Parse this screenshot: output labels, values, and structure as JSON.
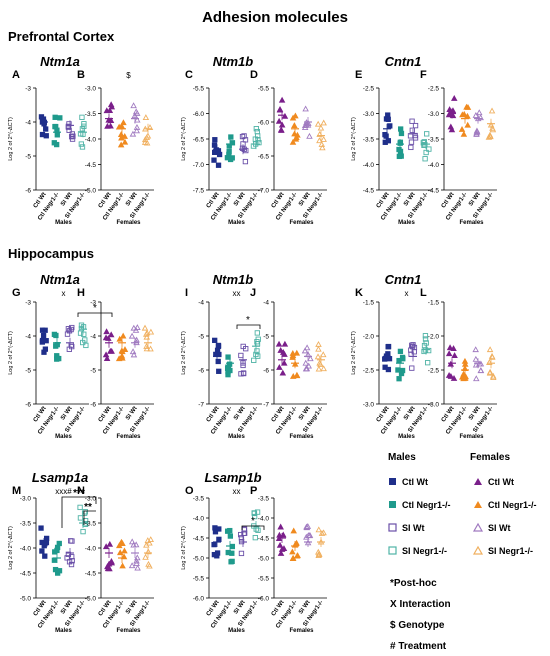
{
  "title": "Adhesion molecules",
  "sections": [
    {
      "label": "Prefrontal Cortex"
    },
    {
      "label": "Hippocampus"
    }
  ],
  "colors": {
    "ctl_wt": "#1f2f8a",
    "ctl_negr1": "#1f9a8c",
    "si_wt": "#6a4fa8",
    "si_negr1": "#4fb3a6",
    "f_ctl_wt": "#7a1f8a",
    "f_ctl_negr1": "#f08a1f",
    "f_si_wt": "#a07ac0",
    "f_si_negr1": "#f0b060"
  },
  "ylabel": "Log 2 of 2^(-ΔCT)",
  "xticks_male": [
    "Ctl Wt",
    "Ctl Negr1-/-",
    "SI Wt",
    "SI Negr1-/-"
  ],
  "xticks_female": [
    "Ctl Wt",
    "Ctl Negr1-/-",
    "SI Wt",
    "SI Negr1-/-"
  ],
  "group_male": "Males",
  "group_female": "Females",
  "panels": [
    {
      "letter": "A",
      "gene": "Ntm1a",
      "sex": "M",
      "ylim": [
        -6,
        -3
      ],
      "yticks": [
        "-3",
        "-4",
        "-5",
        "-6"
      ],
      "means": [
        -4.0,
        -4.3,
        -4.1,
        -4.3
      ],
      "mark": ""
    },
    {
      "letter": "B",
      "gene": "",
      "sex": "F",
      "ylim": [
        -5,
        -3
      ],
      "yticks": [
        "-3.0",
        "-3.5",
        "-4.0",
        "-4.5",
        "-5.0"
      ],
      "means": [
        -3.6,
        -3.8,
        -3.6,
        -3.8
      ],
      "mark": "$"
    },
    {
      "letter": "C",
      "gene": "Ntm1b",
      "sex": "M",
      "ylim": [
        -7.5,
        -5.5
      ],
      "yticks": [
        "-5.5",
        "-6.0",
        "-6.5",
        "-7.0",
        "-7.5"
      ],
      "means": [
        -6.7,
        -6.6,
        -6.7,
        -6.6
      ],
      "mark": ""
    },
    {
      "letter": "D",
      "gene": "",
      "sex": "F",
      "ylim": [
        -7,
        -5.5
      ],
      "yticks": [
        "-5.5",
        "-6.0",
        "-6.5",
        "-7.0"
      ],
      "means": [
        -5.9,
        -6.1,
        -6.0,
        -6.2
      ],
      "mark": ""
    },
    {
      "letter": "E",
      "gene": "Cntn1",
      "sex": "M",
      "ylim": [
        -4.5,
        -2.5
      ],
      "yticks": [
        "-2.5",
        "-3.0",
        "-3.5",
        "-4.0",
        "-4.5"
      ],
      "means": [
        -3.3,
        -3.6,
        -3.4,
        -3.6
      ],
      "mark": ""
    },
    {
      "letter": "F",
      "gene": "",
      "sex": "F",
      "ylim": [
        -4.5,
        -2.5
      ],
      "yticks": [
        "-2.5",
        "-3.0",
        "-3.5",
        "-4.0",
        "-4.5"
      ],
      "means": [
        -3.0,
        -3.1,
        -3.1,
        -3.2
      ],
      "mark": ""
    },
    {
      "letter": "G",
      "gene": "Ntm1a",
      "sex": "M",
      "ylim": [
        -6,
        -3
      ],
      "yticks": [
        "-3",
        "-4",
        "-5",
        "-6"
      ],
      "means": [
        -4.1,
        -4.2,
        -4.2,
        -3.8
      ],
      "mark": "x"
    },
    {
      "letter": "H",
      "gene": "",
      "sex": "F",
      "ylim": [
        -6,
        -3
      ],
      "yticks": [
        "-3",
        "-4",
        "-5",
        "-6"
      ],
      "means": [
        -4.2,
        -4.2,
        -4.2,
        -4.2
      ],
      "mark": ""
    },
    {
      "letter": "I",
      "gene": "Ntm1b",
      "sex": "M",
      "ylim": [
        -7,
        -4
      ],
      "yticks": [
        "-4",
        "-5",
        "-6",
        "-7"
      ],
      "means": [
        -5.6,
        -5.8,
        -5.7,
        -5.3
      ],
      "mark": "xx"
    },
    {
      "letter": "J",
      "gene": "",
      "sex": "F",
      "ylim": [
        -7,
        -4
      ],
      "yticks": [
        "-4",
        "-5",
        "-6",
        "-7"
      ],
      "means": [
        -5.7,
        -5.8,
        -5.6,
        -5.7
      ],
      "mark": ""
    },
    {
      "letter": "K",
      "gene": "Cntn1",
      "sex": "M",
      "ylim": [
        -3,
        -1.5
      ],
      "yticks": [
        "-1.5",
        "-2.0",
        "-2.5",
        "-3.0"
      ],
      "means": [
        -2.3,
        -2.4,
        -2.3,
        -2.2
      ],
      "mark": "x"
    },
    {
      "letter": "L",
      "gene": "",
      "sex": "F",
      "ylim": [
        -3,
        -1.5
      ],
      "yticks": [
        "-1.5",
        "-2.0",
        "-2.5",
        "-3.0"
      ],
      "means": [
        -2.4,
        -2.5,
        -2.4,
        -2.4
      ],
      "mark": ""
    },
    {
      "letter": "M",
      "gene": "Lsamp1a",
      "sex": "M",
      "ylim": [
        -5,
        -3
      ],
      "yticks": [
        "-3.0",
        "-3.5",
        "-4.0",
        "-4.5",
        "-5.0"
      ],
      "means": [
        -3.9,
        -4.2,
        -4.1,
        -3.5
      ],
      "mark": "xxx#"
    },
    {
      "letter": "N",
      "gene": "",
      "sex": "F",
      "ylim": [
        -5,
        -3
      ],
      "yticks": [
        "-3.0",
        "-3.5",
        "-4.0",
        "-4.5",
        "-5.0"
      ],
      "means": [
        -4.1,
        -4.2,
        -4.1,
        -4.1
      ],
      "mark": ""
    },
    {
      "letter": "O",
      "gene": "Lsamp1b",
      "sex": "M",
      "ylim": [
        -6,
        -3.5
      ],
      "yticks": [
        "-3.5",
        "-4.0",
        "-4.5",
        "-5.0",
        "-5.5",
        "-6.0"
      ],
      "means": [
        -4.6,
        -4.7,
        -4.6,
        -4.2
      ],
      "mark": "xx"
    },
    {
      "letter": "P",
      "gene": "",
      "sex": "F",
      "ylim": [
        -6,
        -3.5
      ],
      "yticks": [
        "-3.5",
        "-4.0",
        "-4.5",
        "-5.0",
        "-5.5",
        "-6.0"
      ],
      "means": [
        -4.5,
        -4.7,
        -4.6,
        -4.6
      ],
      "mark": ""
    }
  ],
  "legend": {
    "males_title": "Males",
    "females_title": "Females",
    "items_male": [
      "Ctl Wt",
      "Ctl Negr1-/-",
      "SI Wt",
      "SI Negr1-/-"
    ],
    "items_female": [
      "Ctl Wt",
      "Ctl Negr1-/-",
      "SI Wt",
      "SI Negr1-/-"
    ],
    "notes": [
      "*Post-hoc",
      "X Interaction",
      "$ Genotype",
      "# Treatment"
    ]
  },
  "significance": {
    "star1": "*",
    "star2": "**",
    "star3": "***"
  }
}
